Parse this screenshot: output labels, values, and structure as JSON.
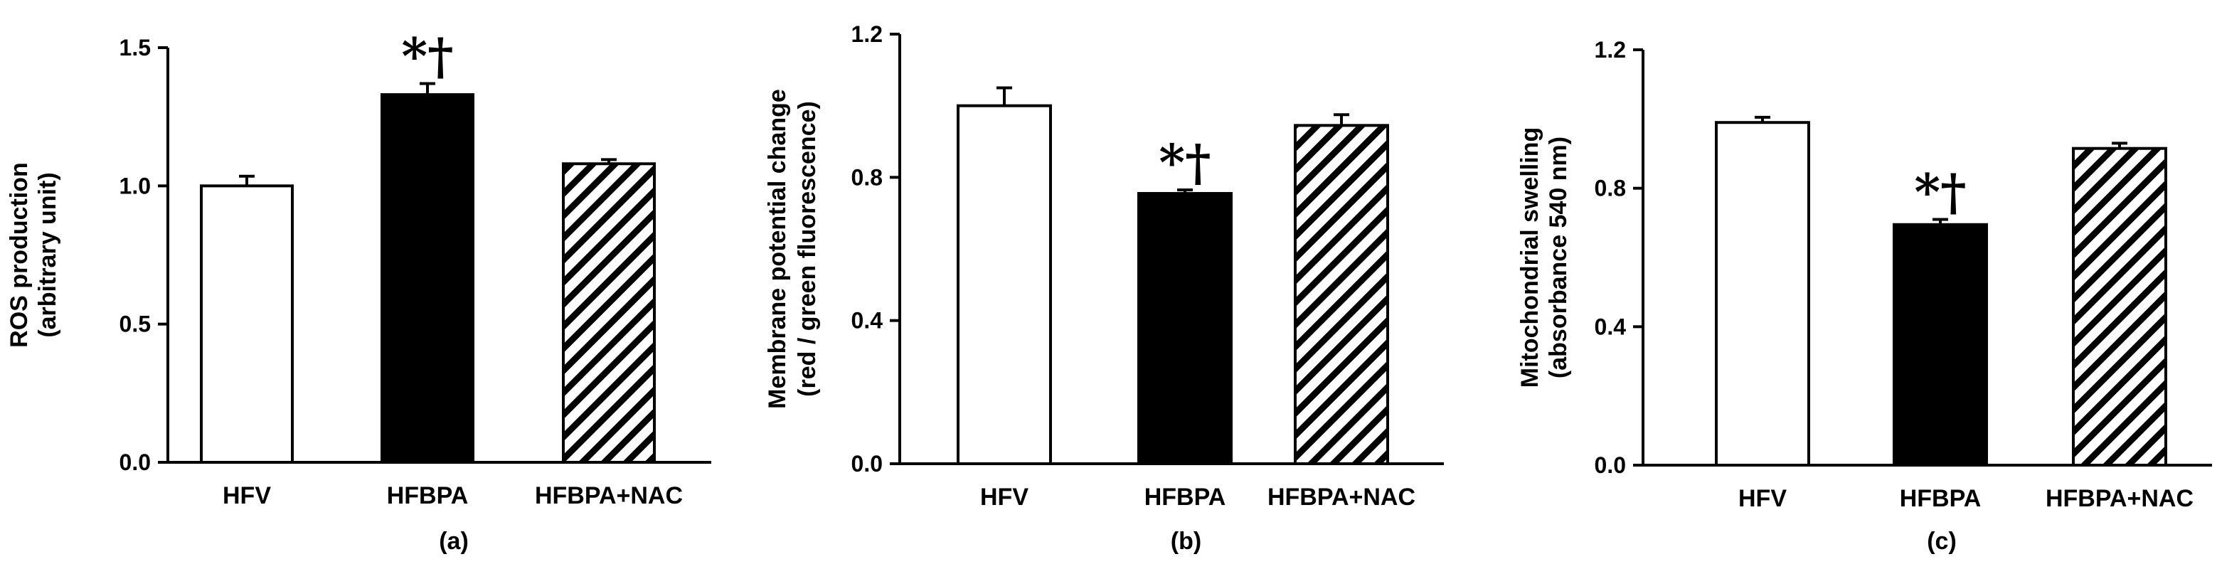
{
  "chart_data": [
    {
      "type": "bar",
      "panel_label": "(a)",
      "categories": [
        "HFV",
        "HFBPA",
        "HFBPA+NAC"
      ],
      "values": [
        1.0,
        1.33,
        1.08
      ],
      "errors": [
        0.035,
        0.04,
        0.015
      ],
      "ylabel_lines": [
        "ROS production",
        "(arbitrary unit)"
      ],
      "ylim": [
        0,
        1.5
      ],
      "yticks": [
        0.0,
        0.5,
        1.0,
        1.5
      ],
      "tick_labels": [
        "0.0",
        "0.5",
        "1.0",
        "1.5"
      ],
      "fills": [
        "white",
        "black",
        "hatch"
      ],
      "annotations": [
        "",
        "*†",
        ""
      ],
      "legend": "none",
      "grid": false
    },
    {
      "type": "bar",
      "panel_label": "(b)",
      "categories": [
        "HFV",
        "HFBPA",
        "HFBPA+NAC"
      ],
      "values": [
        1.0,
        0.755,
        0.945
      ],
      "errors": [
        0.05,
        0.01,
        0.03
      ],
      "ylabel_lines": [
        "Membrane potential change",
        "(red / green fluorescence)"
      ],
      "ylim": [
        0,
        1.2
      ],
      "yticks": [
        0.0,
        0.4,
        0.8,
        1.2
      ],
      "tick_labels": [
        "0.0",
        "0.4",
        "0.8",
        "1.2"
      ],
      "fills": [
        "white",
        "black",
        "hatch"
      ],
      "annotations": [
        "",
        "*†",
        ""
      ],
      "legend": "none",
      "grid": false
    },
    {
      "type": "bar",
      "panel_label": "(c)",
      "categories": [
        "HFV",
        "HFBPA",
        "HFBPA+NAC"
      ],
      "values": [
        0.99,
        0.695,
        0.915
      ],
      "errors": [
        0.015,
        0.015,
        0.015
      ],
      "ylabel_lines": [
        "Mitochondrial swelling",
        "(absorbance 540 nm)"
      ],
      "ylim": [
        0,
        1.2
      ],
      "yticks": [
        0.0,
        0.4,
        0.8,
        1.2
      ],
      "tick_labels": [
        "0.0",
        "0.4",
        "0.8",
        "1.2"
      ],
      "fills": [
        "white",
        "black",
        "hatch"
      ],
      "annotations": [
        "",
        "*†",
        ""
      ],
      "legend": "none",
      "grid": false
    }
  ]
}
